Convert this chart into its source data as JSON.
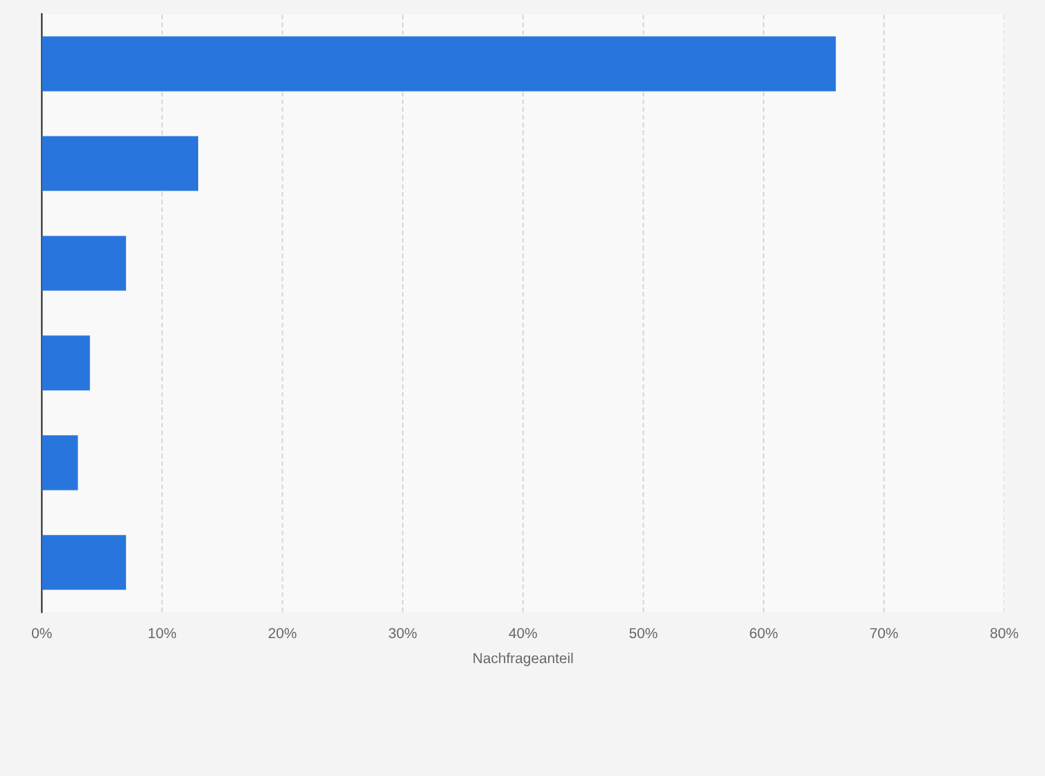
{
  "chart_data": {
    "type": "bar",
    "orientation": "horizontal",
    "categories": [
      null,
      null,
      null,
      null,
      null,
      null
    ],
    "values": [
      66,
      13,
      7,
      4,
      3,
      7
    ],
    "color": "#2876dd",
    "xlabel": "Nachfrageanteil",
    "xlim": [
      0,
      80
    ],
    "xticks": [
      {
        "value": 0,
        "label": "0%"
      },
      {
        "value": 10,
        "label": "10%"
      },
      {
        "value": 20,
        "label": "20%"
      },
      {
        "value": 30,
        "label": "30%"
      },
      {
        "value": 40,
        "label": "40%"
      },
      {
        "value": 50,
        "label": "50%"
      },
      {
        "value": 60,
        "label": "60%"
      },
      {
        "value": 70,
        "label": "70%"
      },
      {
        "value": 80,
        "label": "80%"
      }
    ],
    "grid": "x",
    "tick_labels": "x"
  }
}
